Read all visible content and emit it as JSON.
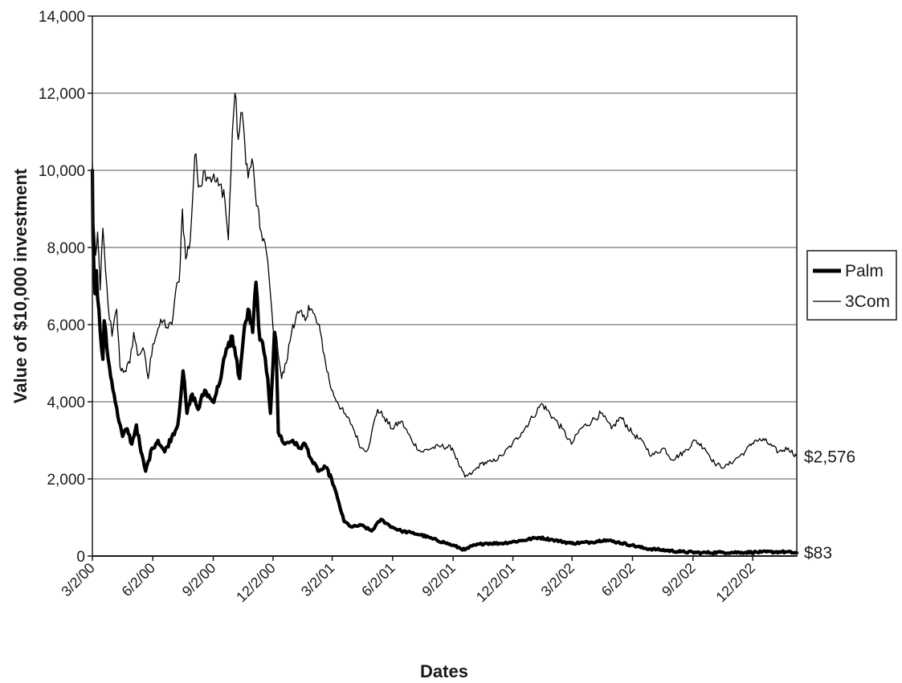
{
  "chart_data": {
    "type": "line",
    "xlabel": "Dates",
    "ylabel": "Value of $10,000 investment",
    "ylim": [
      0,
      14000
    ],
    "xlim": [
      "2000-03-02",
      "2003-02-07"
    ],
    "grid": true,
    "legend_position": "right",
    "x_ticks": [
      "3/2/00",
      "6/2/00",
      "9/2/00",
      "12/2/00",
      "3/2/01",
      "6/2/01",
      "9/2/01",
      "12/2/01",
      "3/2/02",
      "6/2/02",
      "9/2/02",
      "12/2/02"
    ],
    "y_ticks": [
      "0",
      "2,000",
      "4,000",
      "6,000",
      "8,000",
      "10,000",
      "12,000",
      "14,000"
    ],
    "series": [
      {
        "name": "Palm",
        "color": "#000000",
        "end_label": "$83",
        "end_value": 83,
        "points": [
          [
            "2000-03-02",
            10000
          ],
          [
            "2000-03-03",
            8200
          ],
          [
            "2000-03-06",
            6800
          ],
          [
            "2000-03-08",
            7400
          ],
          [
            "2000-03-10",
            6700
          ],
          [
            "2000-03-14",
            5800
          ],
          [
            "2000-03-18",
            5100
          ],
          [
            "2000-03-20",
            6100
          ],
          [
            "2000-03-24",
            5400
          ],
          [
            "2000-03-28",
            4900
          ],
          [
            "2000-04-04",
            4200
          ],
          [
            "2000-04-10",
            3600
          ],
          [
            "2000-04-17",
            3100
          ],
          [
            "2000-04-24",
            3300
          ],
          [
            "2000-05-01",
            2900
          ],
          [
            "2000-05-08",
            3400
          ],
          [
            "2000-05-15",
            2700
          ],
          [
            "2000-05-22",
            2200
          ],
          [
            "2000-06-01",
            2800
          ],
          [
            "2000-06-10",
            3000
          ],
          [
            "2000-06-20",
            2700
          ],
          [
            "2000-07-01",
            3100
          ],
          [
            "2000-07-10",
            3400
          ],
          [
            "2000-07-18",
            4800
          ],
          [
            "2000-07-24",
            3700
          ],
          [
            "2000-08-01",
            4200
          ],
          [
            "2000-08-10",
            3800
          ],
          [
            "2000-08-20",
            4300
          ],
          [
            "2000-09-01",
            4000
          ],
          [
            "2000-09-10",
            4400
          ],
          [
            "2000-09-20",
            5200
          ],
          [
            "2000-10-01",
            5700
          ],
          [
            "2000-10-06",
            5200
          ],
          [
            "2000-10-12",
            4600
          ],
          [
            "2000-10-18",
            5700
          ],
          [
            "2000-10-25",
            6400
          ],
          [
            "2000-11-01",
            5800
          ],
          [
            "2000-11-06",
            7100
          ],
          [
            "2000-11-12",
            5600
          ],
          [
            "2000-11-18",
            5300
          ],
          [
            "2000-11-24",
            4600
          ],
          [
            "2000-11-28",
            3700
          ],
          [
            "2000-12-04",
            5800
          ],
          [
            "2000-12-07",
            5100
          ],
          [
            "2000-12-10",
            3200
          ],
          [
            "2000-12-20",
            2900
          ],
          [
            "2001-01-01",
            3000
          ],
          [
            "2001-01-10",
            2800
          ],
          [
            "2001-01-20",
            2900
          ],
          [
            "2001-02-01",
            2400
          ],
          [
            "2001-02-10",
            2200
          ],
          [
            "2001-02-20",
            2300
          ],
          [
            "2001-03-01",
            2000
          ],
          [
            "2001-03-10",
            1500
          ],
          [
            "2001-03-20",
            900
          ],
          [
            "2001-04-01",
            750
          ],
          [
            "2001-04-15",
            800
          ],
          [
            "2001-05-01",
            650
          ],
          [
            "2001-05-15",
            950
          ],
          [
            "2001-06-01",
            750
          ],
          [
            "2001-06-15",
            650
          ],
          [
            "2001-07-01",
            600
          ],
          [
            "2001-07-15",
            550
          ],
          [
            "2001-08-01",
            450
          ],
          [
            "2001-08-20",
            350
          ],
          [
            "2001-09-01",
            280
          ],
          [
            "2001-09-20",
            160
          ],
          [
            "2001-10-01",
            260
          ],
          [
            "2001-10-20",
            330
          ],
          [
            "2001-11-15",
            330
          ],
          [
            "2001-12-15",
            400
          ],
          [
            "2002-01-10",
            480
          ],
          [
            "2002-02-01",
            420
          ],
          [
            "2002-03-01",
            330
          ],
          [
            "2002-04-01",
            360
          ],
          [
            "2002-04-20",
            420
          ],
          [
            "2002-05-10",
            360
          ],
          [
            "2002-06-01",
            280
          ],
          [
            "2002-06-20",
            200
          ],
          [
            "2002-07-15",
            160
          ],
          [
            "2002-08-15",
            110
          ],
          [
            "2002-09-15",
            85
          ],
          [
            "2002-10-15",
            95
          ],
          [
            "2002-11-15",
            95
          ],
          [
            "2002-12-15",
            100
          ],
          [
            "2003-01-15",
            110
          ],
          [
            "2003-02-07",
            83
          ]
        ]
      },
      {
        "name": "3Com",
        "color": "#000000",
        "end_label": "$2,576",
        "end_value": 2576,
        "points": [
          [
            "2000-03-02",
            10200
          ],
          [
            "2000-03-04",
            8700
          ],
          [
            "2000-03-07",
            7800
          ],
          [
            "2000-03-10",
            8400
          ],
          [
            "2000-03-14",
            6900
          ],
          [
            "2000-03-18",
            8500
          ],
          [
            "2000-03-22",
            7400
          ],
          [
            "2000-03-26",
            6500
          ],
          [
            "2000-04-01",
            5700
          ],
          [
            "2000-04-08",
            6400
          ],
          [
            "2000-04-13",
            4900
          ],
          [
            "2000-04-20",
            4800
          ],
          [
            "2000-04-28",
            5000
          ],
          [
            "2000-05-04",
            5800
          ],
          [
            "2000-05-10",
            5200
          ],
          [
            "2000-05-18",
            5400
          ],
          [
            "2000-05-26",
            4600
          ],
          [
            "2000-06-02",
            5500
          ],
          [
            "2000-06-10",
            5900
          ],
          [
            "2000-06-18",
            6100
          ],
          [
            "2000-06-25",
            5900
          ],
          [
            "2000-07-01",
            6000
          ],
          [
            "2000-07-07",
            6900
          ],
          [
            "2000-07-12",
            7100
          ],
          [
            "2000-07-17",
            9000
          ],
          [
            "2000-07-22",
            7700
          ],
          [
            "2000-07-29",
            8200
          ],
          [
            "2000-08-05",
            10400
          ],
          [
            "2000-08-12",
            9600
          ],
          [
            "2000-08-20",
            10000
          ],
          [
            "2000-09-01",
            9800
          ],
          [
            "2000-09-10",
            9600
          ],
          [
            "2000-09-18",
            9500
          ],
          [
            "2000-09-25",
            8200
          ],
          [
            "2000-10-01",
            11000
          ],
          [
            "2000-10-05",
            12000
          ],
          [
            "2000-10-10",
            10800
          ],
          [
            "2000-10-16",
            11500
          ],
          [
            "2000-10-20",
            10700
          ],
          [
            "2000-10-25",
            9800
          ],
          [
            "2000-10-31",
            10300
          ],
          [
            "2000-11-05",
            9400
          ],
          [
            "2000-11-12",
            8500
          ],
          [
            "2000-11-20",
            8100
          ],
          [
            "2000-11-26",
            7200
          ],
          [
            "2000-12-02",
            5900
          ],
          [
            "2000-12-08",
            5600
          ],
          [
            "2000-12-15",
            4600
          ],
          [
            "2000-12-22",
            5000
          ],
          [
            "2001-01-01",
            6000
          ],
          [
            "2001-01-10",
            6300
          ],
          [
            "2001-01-20",
            6100
          ],
          [
            "2001-01-25",
            6500
          ],
          [
            "2001-02-01",
            6300
          ],
          [
            "2001-02-12",
            5800
          ],
          [
            "2001-02-20",
            5000
          ],
          [
            "2001-03-01",
            4300
          ],
          [
            "2001-03-10",
            4000
          ],
          [
            "2001-03-20",
            3700
          ],
          [
            "2001-04-01",
            3400
          ],
          [
            "2001-04-15",
            2800
          ],
          [
            "2001-04-25",
            2750
          ],
          [
            "2001-05-01",
            3200
          ],
          [
            "2001-05-10",
            3800
          ],
          [
            "2001-05-20",
            3600
          ],
          [
            "2001-06-01",
            3300
          ],
          [
            "2001-06-15",
            3500
          ],
          [
            "2001-07-01",
            3000
          ],
          [
            "2001-07-15",
            2700
          ],
          [
            "2001-08-01",
            2800
          ],
          [
            "2001-08-15",
            2850
          ],
          [
            "2001-09-01",
            2800
          ],
          [
            "2001-09-10",
            2400
          ],
          [
            "2001-09-20",
            2050
          ],
          [
            "2001-10-01",
            2150
          ],
          [
            "2001-10-15",
            2400
          ],
          [
            "2001-11-01",
            2450
          ],
          [
            "2001-11-15",
            2600
          ],
          [
            "2001-12-01",
            2900
          ],
          [
            "2001-12-15",
            3200
          ],
          [
            "2002-01-01",
            3600
          ],
          [
            "2002-01-15",
            3950
          ],
          [
            "2002-02-01",
            3600
          ],
          [
            "2002-02-15",
            3300
          ],
          [
            "2002-03-01",
            2900
          ],
          [
            "2002-03-15",
            3300
          ],
          [
            "2002-04-01",
            3500
          ],
          [
            "2002-04-15",
            3700
          ],
          [
            "2002-05-01",
            3300
          ],
          [
            "2002-05-15",
            3600
          ],
          [
            "2002-06-01",
            3200
          ],
          [
            "2002-06-20",
            2900
          ],
          [
            "2002-07-01",
            2600
          ],
          [
            "2002-07-20",
            2800
          ],
          [
            "2002-08-01",
            2500
          ],
          [
            "2002-08-20",
            2700
          ],
          [
            "2002-09-05",
            3000
          ],
          [
            "2002-09-20",
            2800
          ],
          [
            "2002-10-05",
            2400
          ],
          [
            "2002-10-20",
            2300
          ],
          [
            "2002-11-05",
            2500
          ],
          [
            "2002-11-20",
            2700
          ],
          [
            "2002-12-05",
            3000
          ],
          [
            "2002-12-20",
            3000
          ],
          [
            "2003-01-10",
            2700
          ],
          [
            "2003-01-25",
            2800
          ],
          [
            "2003-02-07",
            2576
          ]
        ]
      }
    ]
  }
}
